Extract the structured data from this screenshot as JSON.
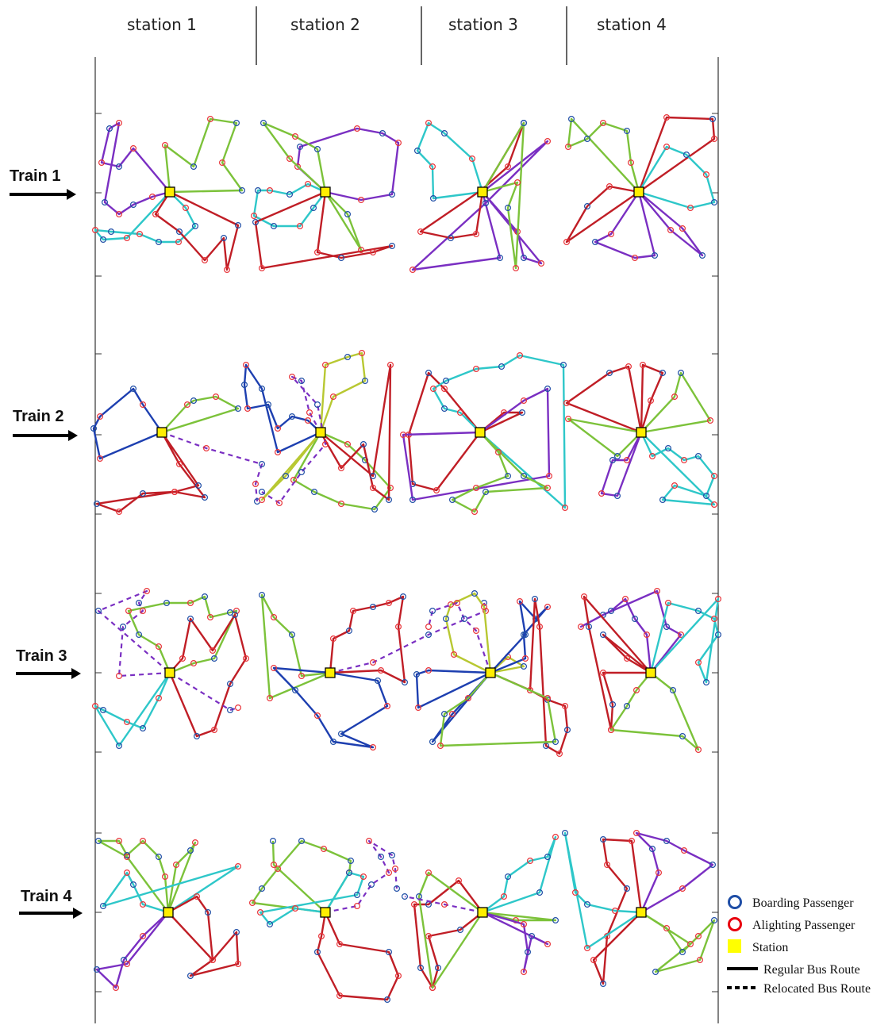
{
  "stations": [
    "station 1",
    "station 2",
    "station 3",
    "station 4"
  ],
  "trains": [
    "Train  1",
    "Train  2",
    "Train  3",
    "Train  4"
  ],
  "legend": {
    "boarding": "Boarding Passenger",
    "alighting": "Alighting Passenger",
    "station": "Station",
    "regular": "Regular Bus Route",
    "relocated": "Relocated Bus Route"
  },
  "colors": {
    "boarding": "#1f4ea6",
    "alighting": "#e8343a",
    "station_fill": "#ffee00",
    "route_purple": "#7a2fc2",
    "route_cyan": "#2ec7c9",
    "route_red": "#c01e26",
    "route_green": "#7cc23a",
    "route_blue": "#1d3fb0",
    "route_olive": "#b8c832"
  }
}
